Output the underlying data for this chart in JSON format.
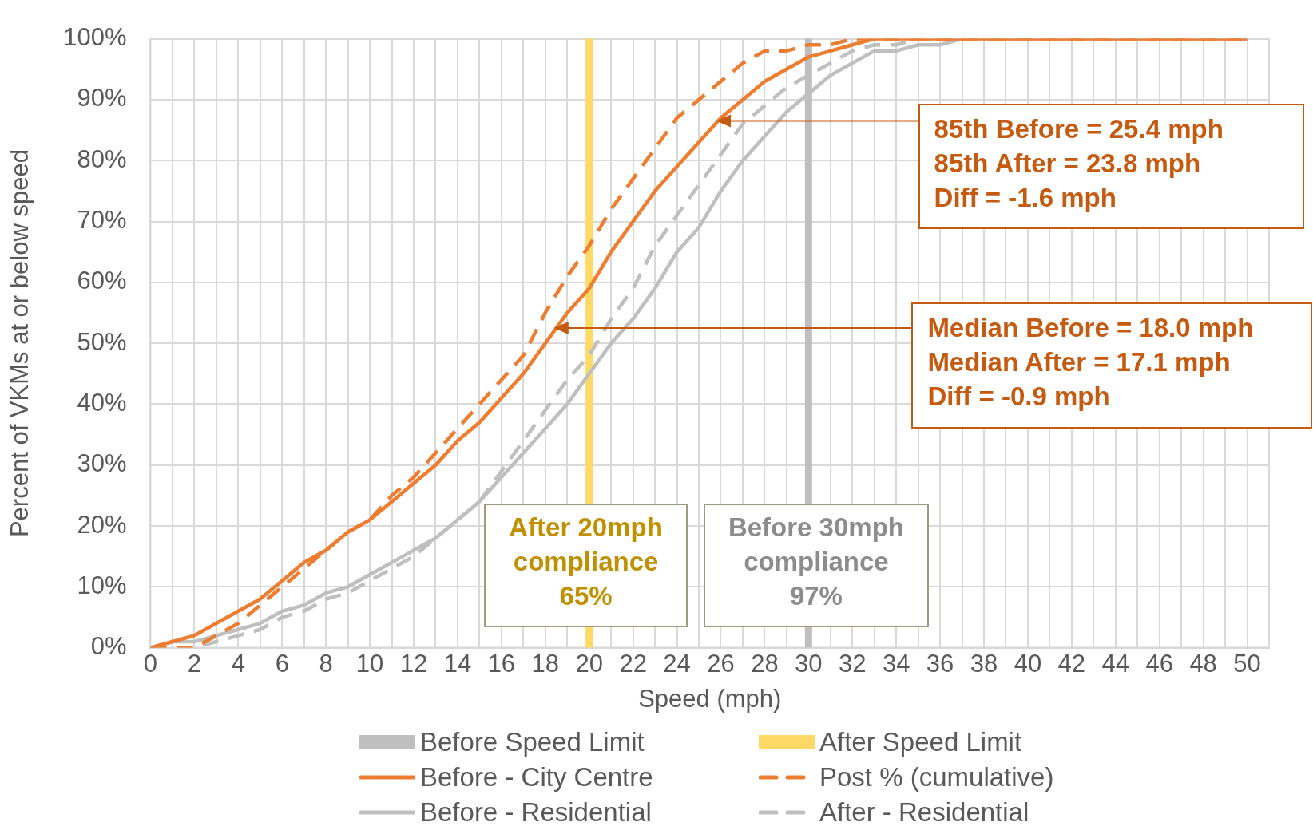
{
  "chart_data": {
    "type": "line",
    "xlabel": "Speed (mph)",
    "ylabel": "Percent of VKMs at or below speed",
    "x": [
      0,
      1,
      2,
      3,
      4,
      5,
      6,
      7,
      8,
      9,
      10,
      11,
      12,
      13,
      14,
      15,
      16,
      17,
      18,
      19,
      20,
      21,
      22,
      23,
      24,
      25,
      26,
      27,
      28,
      29,
      30,
      31,
      32,
      33,
      34,
      35,
      36,
      37,
      38,
      39,
      40,
      41,
      42,
      43,
      44,
      45,
      46,
      47,
      48,
      49,
      50
    ],
    "series": [
      {
        "name": "Before - City Centre",
        "color": "#ed7d31",
        "line_style": "solid",
        "values": [
          0,
          1,
          2,
          4,
          6,
          8,
          11,
          14,
          16,
          19,
          21,
          24,
          27,
          30,
          34,
          37,
          41,
          45,
          50,
          55,
          59,
          65,
          70,
          75,
          79,
          83,
          87,
          90,
          93,
          95,
          97,
          98,
          99,
          100,
          100,
          100,
          100,
          100,
          100,
          100,
          100,
          100,
          100,
          100,
          100,
          100,
          100,
          100,
          100,
          100,
          100
        ]
      },
      {
        "name": "Post % (cumulative)",
        "color": "#ed7d31",
        "line_style": "dashed",
        "values": [
          0,
          0,
          0,
          2,
          4,
          7,
          10,
          13,
          16,
          19,
          21,
          25,
          28,
          32,
          36,
          40,
          44,
          48,
          55,
          61,
          66,
          72,
          77,
          82,
          87,
          90,
          93,
          96,
          98,
          98,
          99,
          99,
          100,
          100,
          100,
          100,
          100,
          100,
          100,
          100,
          100,
          100,
          100,
          100,
          100,
          100,
          100,
          100,
          100,
          100,
          100
        ]
      },
      {
        "name": "Before - Residential",
        "color": "#bfbfbf",
        "line_style": "solid",
        "values": [
          0,
          1,
          1,
          2,
          3,
          4,
          6,
          7,
          9,
          10,
          12,
          14,
          16,
          18,
          21,
          24,
          28,
          32,
          36,
          40,
          45,
          50,
          54,
          59,
          65,
          69,
          75,
          80,
          84,
          88,
          91,
          94,
          96,
          98,
          98,
          99,
          99,
          100,
          100,
          100,
          100,
          100,
          100,
          100,
          100,
          100,
          100,
          100,
          100,
          100,
          100
        ]
      },
      {
        "name": "After - Residential",
        "color": "#bfbfbf",
        "line_style": "dashed",
        "values": [
          0,
          0,
          0,
          1,
          2,
          3,
          5,
          6,
          8,
          9,
          11,
          13,
          15,
          18,
          21,
          24,
          29,
          34,
          39,
          44,
          48,
          54,
          59,
          66,
          71,
          76,
          81,
          86,
          89,
          92,
          94,
          96,
          98,
          99,
          99,
          100,
          100,
          100,
          100,
          100,
          100,
          100,
          100,
          100,
          100,
          100,
          100,
          100,
          100,
          100,
          100
        ]
      }
    ],
    "ref_lines": [
      {
        "axis": "x",
        "value": 30,
        "label": "Before Speed Limit",
        "color": "#bfbfbf"
      },
      {
        "axis": "x",
        "value": 20,
        "label": "After Speed Limit",
        "color": "#ffd966"
      }
    ],
    "annotations": [
      "85th Before = 25.4 mph\n85th After = 23.8 mph\nDiff = -1.6 mph",
      "Median Before = 18.0 mph\nMedian After = 17.1 mph\nDiff = -0.9 mph",
      "After 20mph\ncompliance\n65%",
      "Before 30mph\ncompliance\n97%"
    ],
    "xlim": [
      0,
      51
    ],
    "xticks": [
      0,
      {
        "value": 1,
        "label": null
      },
      2,
      {
        "value": 3,
        "label": null
      },
      4,
      {
        "value": 5,
        "label": null
      },
      6,
      {
        "value": 7,
        "label": null
      },
      8,
      {
        "value": 9,
        "label": null
      },
      10,
      {
        "value": 11,
        "label": null
      },
      12,
      {
        "value": 13,
        "label": null
      },
      14,
      {
        "value": 15,
        "label": null
      },
      16,
      {
        "value": 17,
        "label": null
      },
      18,
      {
        "value": 19,
        "label": null
      },
      20,
      {
        "value": 21,
        "label": null
      },
      22,
      {
        "value": 23,
        "label": null
      },
      24,
      {
        "value": 25,
        "label": null
      },
      26,
      {
        "value": 27,
        "label": null
      },
      28,
      {
        "value": 29,
        "label": null
      },
      30,
      {
        "value": 31,
        "label": null
      },
      32,
      {
        "value": 33,
        "label": null
      },
      34,
      {
        "value": 35,
        "label": null
      },
      36,
      {
        "value": 37,
        "label": null
      },
      38,
      {
        "value": 39,
        "label": null
      },
      40,
      {
        "value": 41,
        "label": null
      },
      42,
      {
        "value": 43,
        "label": null
      },
      44,
      {
        "value": 45,
        "label": null
      },
      46,
      {
        "value": 47,
        "label": null
      },
      48,
      {
        "value": 49,
        "label": null
      },
      50
    ],
    "ylim": [
      0,
      100
    ],
    "yticks": [
      {
        "value": 0,
        "label": "0%"
      },
      {
        "value": 10,
        "label": "10%"
      },
      {
        "value": 20,
        "label": "20%"
      },
      {
        "value": 30,
        "label": "30%"
      },
      {
        "value": 40,
        "label": "40%"
      },
      {
        "value": 50,
        "label": "50%"
      },
      {
        "value": 60,
        "label": "60%"
      },
      {
        "value": 70,
        "label": "70%"
      },
      {
        "value": 80,
        "label": "80%"
      },
      {
        "value": 90,
        "label": "90%"
      },
      {
        "value": 100,
        "label": "100%"
      }
    ],
    "grid": true,
    "legend": "bottom",
    "marker": "none"
  }
}
